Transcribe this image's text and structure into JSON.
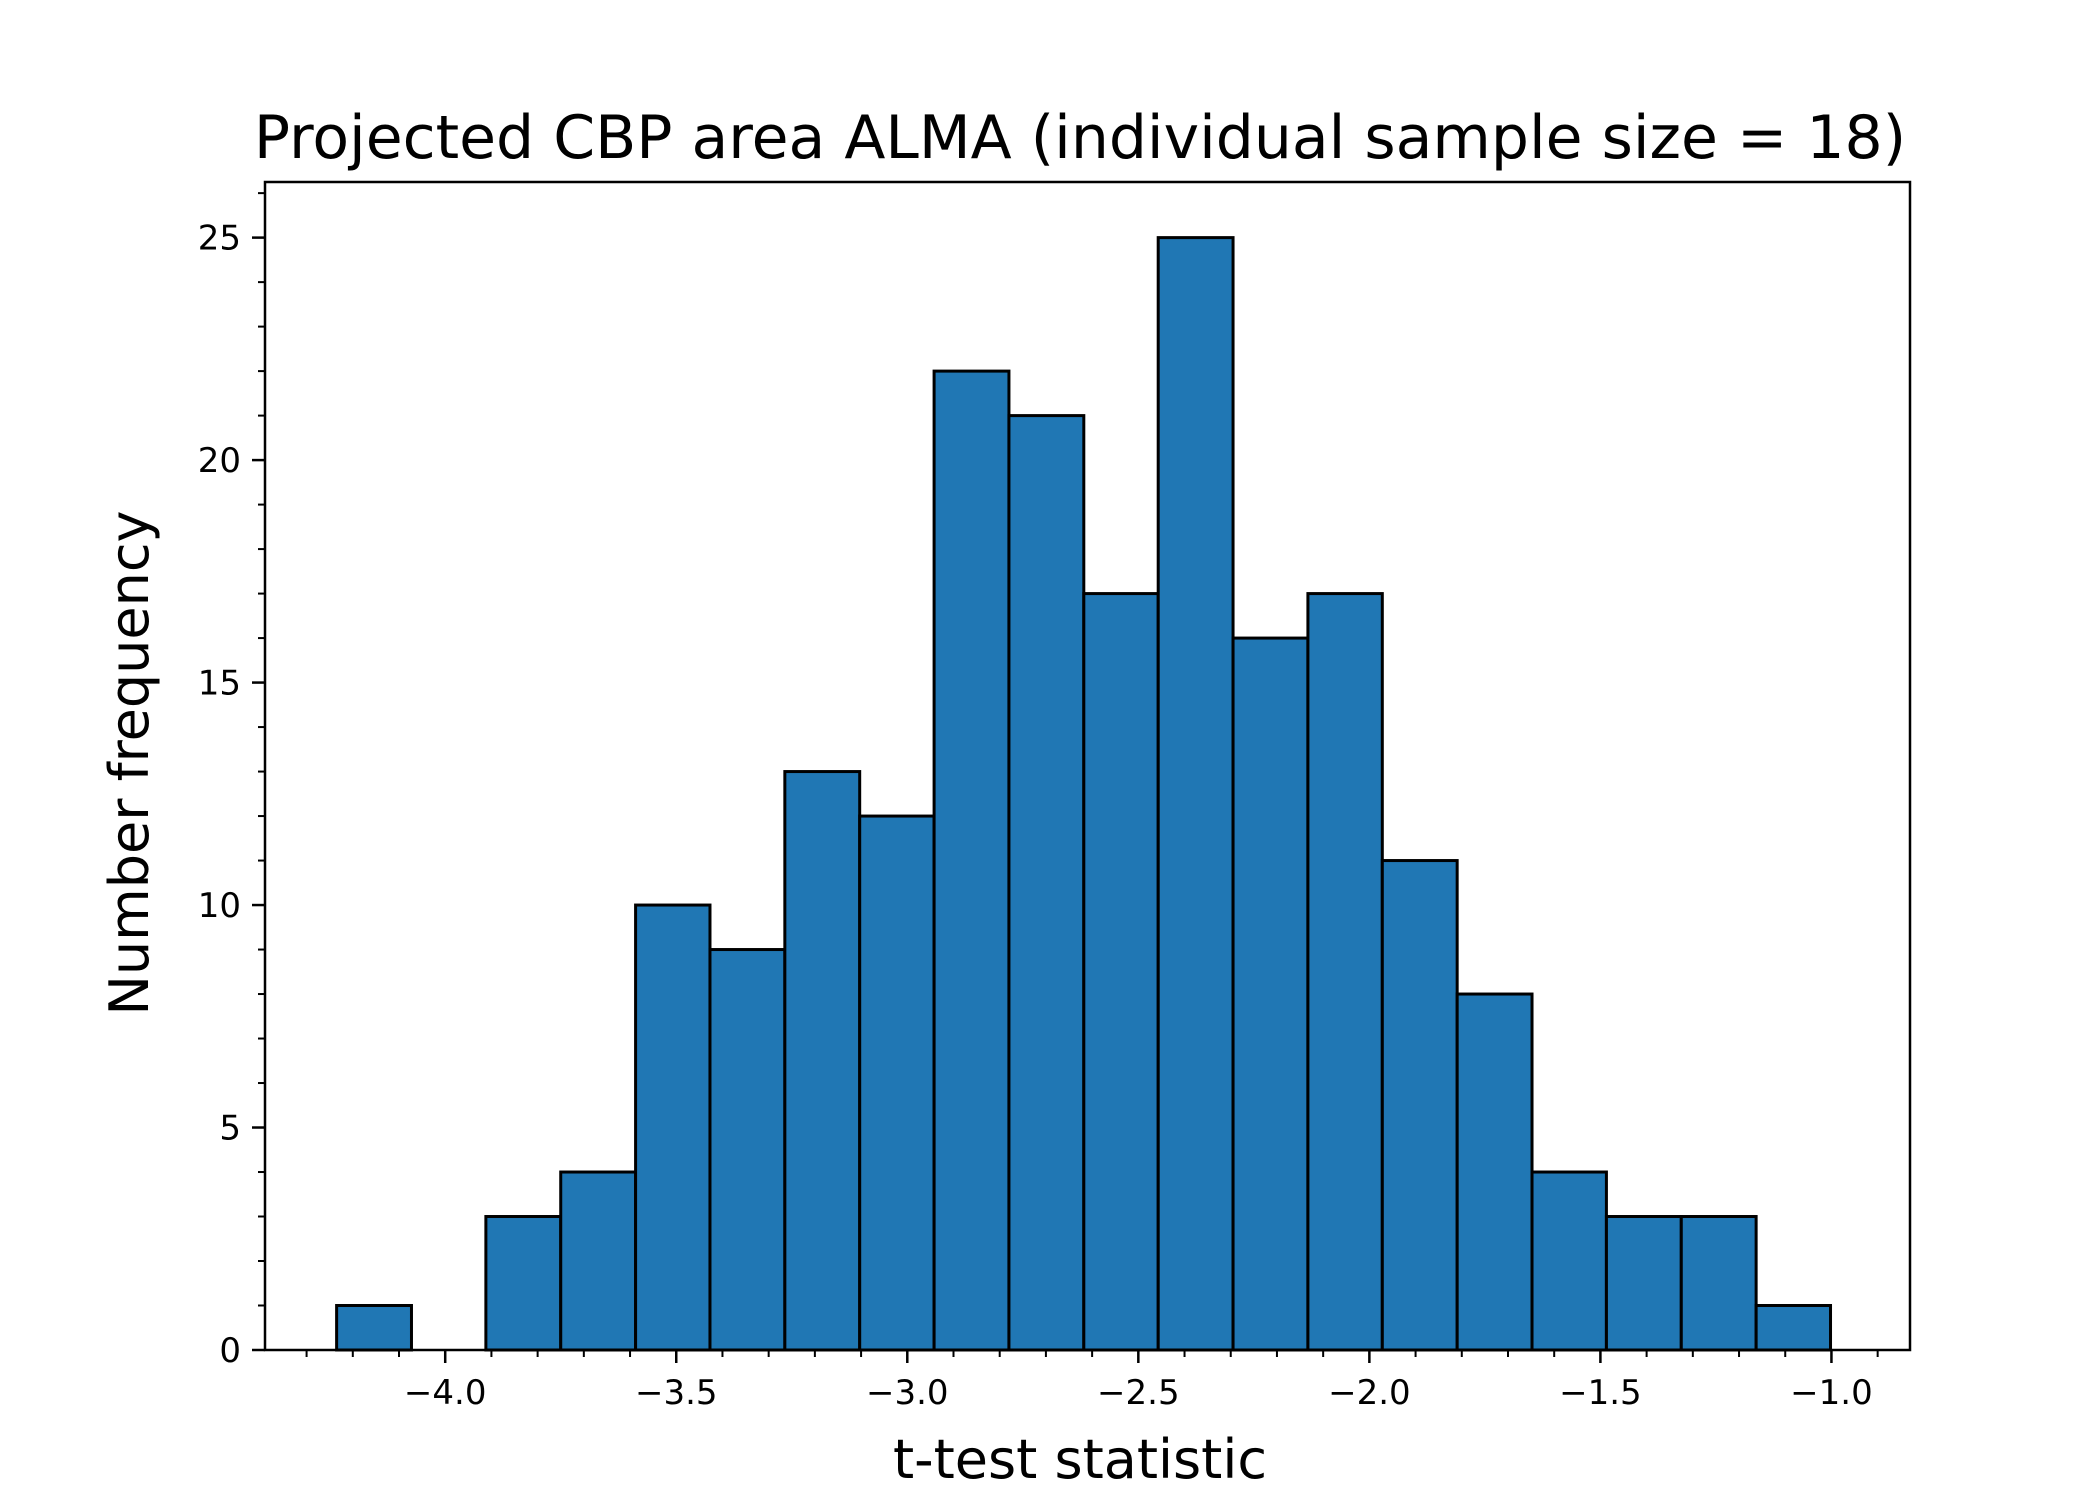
{
  "chart_data": {
    "type": "bar",
    "histogram": true,
    "title": "Projected CBP area ALMA (individual sample size = 18)",
    "xlabel": "t-test statistic",
    "ylabel": "Number frequency",
    "xlim": [
      -4.39,
      -0.83
    ],
    "ylim": [
      0,
      26.25
    ],
    "xticks": [
      -4.0,
      -3.5,
      -3.0,
      -2.5,
      -2.0,
      -1.5,
      -1.0
    ],
    "xtick_labels": [
      "−4.0",
      "−3.5",
      "−3.0",
      "−2.5",
      "−2.0",
      "−1.5",
      "−1.0"
    ],
    "yticks": [
      0,
      5,
      10,
      15,
      20,
      25
    ],
    "ytick_labels": [
      "0",
      "5",
      "10",
      "15",
      "20",
      "25"
    ],
    "minor_ticks": true,
    "grid": false,
    "bar_color": "#2077b4",
    "edge_color": "#000000",
    "bins": [
      {
        "x0": -4.235,
        "x1": -4.073,
        "count": 1
      },
      {
        "x0": -4.073,
        "x1": -3.912,
        "count": 0
      },
      {
        "x0": -3.912,
        "x1": -3.75,
        "count": 3
      },
      {
        "x0": -3.75,
        "x1": -3.588,
        "count": 4
      },
      {
        "x0": -3.588,
        "x1": -3.427,
        "count": 10
      },
      {
        "x0": -3.427,
        "x1": -3.265,
        "count": 9
      },
      {
        "x0": -3.265,
        "x1": -3.103,
        "count": 13
      },
      {
        "x0": -3.103,
        "x1": -2.942,
        "count": 12
      },
      {
        "x0": -2.942,
        "x1": -2.78,
        "count": 22
      },
      {
        "x0": -2.78,
        "x1": -2.618,
        "count": 21
      },
      {
        "x0": -2.618,
        "x1": -2.457,
        "count": 17
      },
      {
        "x0": -2.457,
        "x1": -2.295,
        "count": 25
      },
      {
        "x0": -2.295,
        "x1": -2.133,
        "count": 16
      },
      {
        "x0": -2.133,
        "x1": -1.972,
        "count": 17
      },
      {
        "x0": -1.972,
        "x1": -1.81,
        "count": 11
      },
      {
        "x0": -1.81,
        "x1": -1.648,
        "count": 8
      },
      {
        "x0": -1.648,
        "x1": -1.487,
        "count": 4
      },
      {
        "x0": -1.487,
        "x1": -1.325,
        "count": 3
      },
      {
        "x0": -1.325,
        "x1": -1.163,
        "count": 3
      },
      {
        "x0": -1.163,
        "x1": -1.002,
        "count": 1
      }
    ]
  }
}
